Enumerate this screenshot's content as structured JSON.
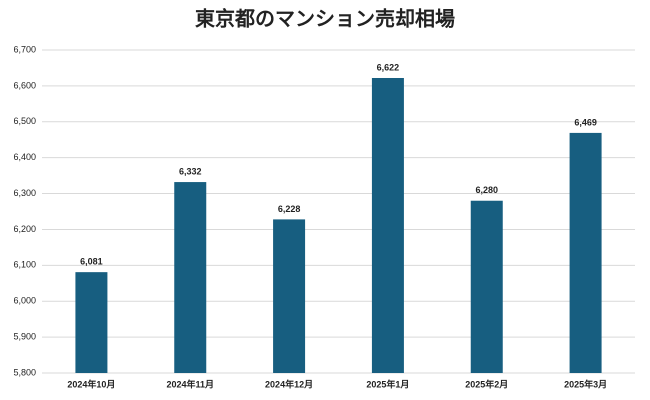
{
  "chart_data": {
    "type": "bar",
    "title": "東京都のマンション売却相場",
    "categories": [
      "2024年10月",
      "2024年11月",
      "2024年12月",
      "2025年1月",
      "2025年2月",
      "2025年3月"
    ],
    "values": [
      6081,
      6332,
      6228,
      6622,
      6280,
      6469
    ],
    "value_labels": [
      "6,081",
      "6,332",
      "6,228",
      "6,622",
      "6,280",
      "6,469"
    ],
    "color": "#175e80",
    "ylim": [
      5800,
      6700
    ],
    "yticks": [
      {
        "value": 5800,
        "label": "5,800"
      },
      {
        "value": 5900,
        "label": "5,900"
      },
      {
        "value": 6000,
        "label": "6,000"
      },
      {
        "value": 6100,
        "label": "6,100"
      },
      {
        "value": 6200,
        "label": "6,200"
      },
      {
        "value": 6300,
        "label": "6,300"
      },
      {
        "value": 6400,
        "label": "6,400"
      },
      {
        "value": 6500,
        "label": "6,500"
      },
      {
        "value": 6600,
        "label": "6,600"
      },
      {
        "value": 6700,
        "label": "6,700"
      }
    ],
    "grid": true
  }
}
